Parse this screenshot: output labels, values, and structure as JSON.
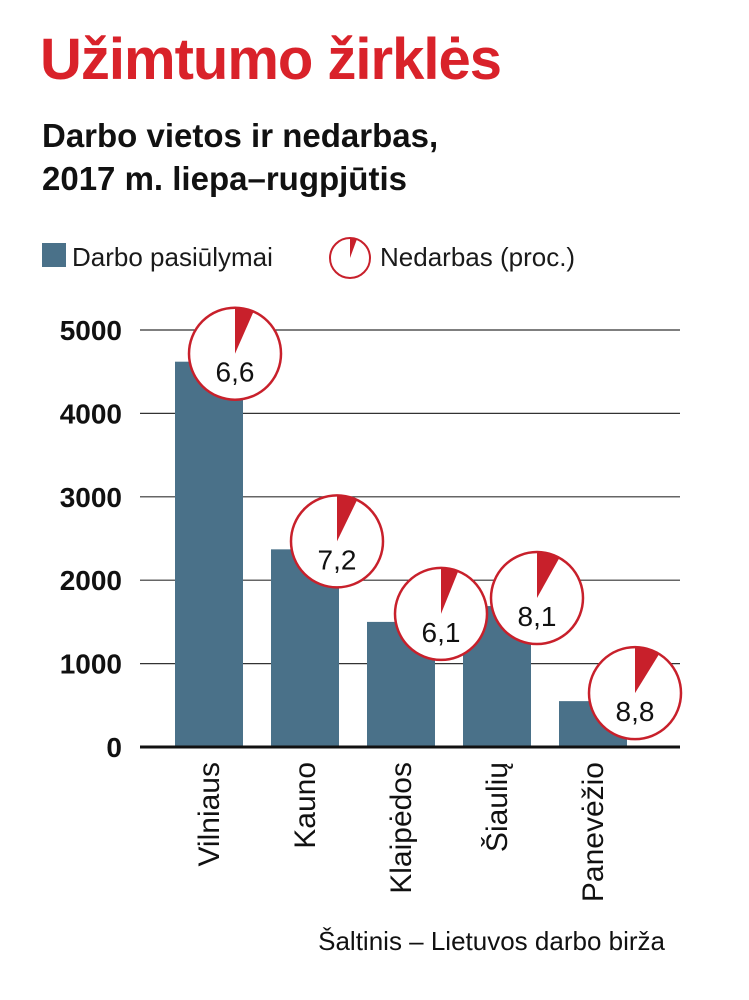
{
  "header": {
    "title": "Užimtumo žirklės",
    "subtitle_line1": "Darbo vietos ir nedarbas,",
    "subtitle_line2": "2017 m. liepa–rugpjūtis"
  },
  "legend": {
    "bars_label": "Darbo pasiūlymai",
    "pie_label": "Nedarbas (proc.)"
  },
  "source": "Šaltinis – Lietuvos darbo birža",
  "colors": {
    "bar": "#4a7189",
    "accent": "#c8202b",
    "grid": "#333333",
    "title": "#d9222a"
  },
  "chart_data": {
    "type": "bar",
    "title": "Užimtumo žirklės",
    "subtitle": "Darbo vietos ir nedarbas, 2017 m. liepa–rugpjūtis",
    "xlabel": "",
    "ylabel": "",
    "ylim": [
      0,
      5000
    ],
    "yticks": [
      0,
      1000,
      2000,
      3000,
      4000,
      5000
    ],
    "ytick_labels": [
      "0",
      "1000",
      "2000",
      "3000",
      "4000",
      "5000"
    ],
    "categories": [
      "Vilniaus",
      "Kauno",
      "Klaipėdos",
      "Šiaulių",
      "Panevėžio"
    ],
    "series": [
      {
        "name": "Darbo pasiūlymai",
        "values": [
          4620,
          2370,
          1500,
          1690,
          550
        ]
      },
      {
        "name": "Nedarbas (proc.)",
        "values": [
          6.6,
          7.2,
          6.1,
          8.1,
          8.8
        ],
        "labels": [
          "6,6",
          "7,2",
          "6,1",
          "8,1",
          "8,8"
        ]
      }
    ],
    "grid": true,
    "legend_position": "top-left"
  }
}
